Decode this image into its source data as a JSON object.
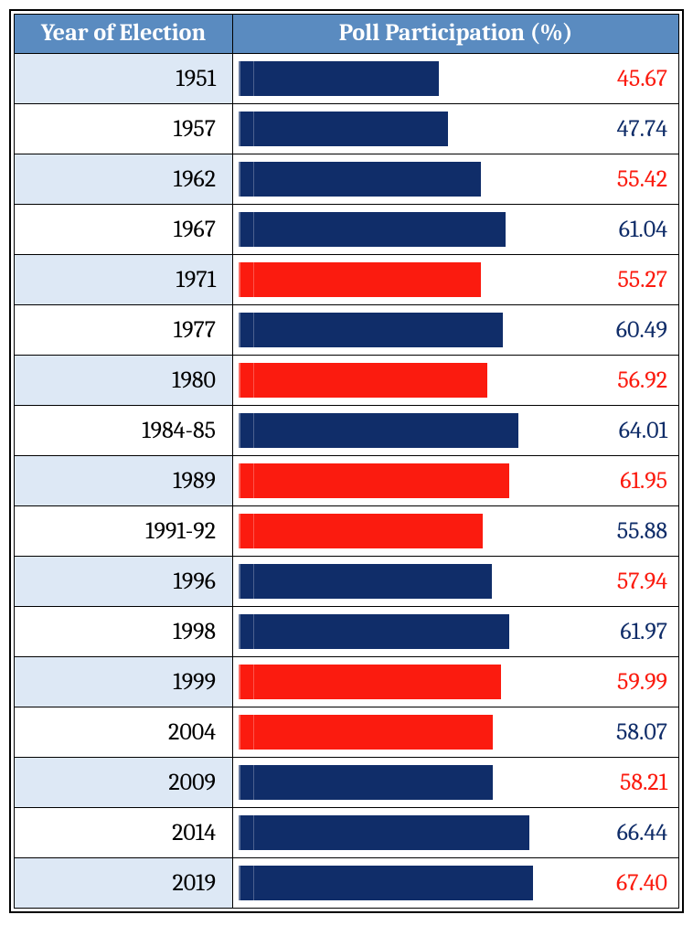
{
  "header": {
    "year": "Year of Election",
    "poll": "Poll Participation (%)"
  },
  "chart": {
    "type": "table-with-inline-bars",
    "bar_scale_max": 100,
    "colors": {
      "header_bg": "#5a8bc0",
      "header_text": "#ffffff",
      "stripe_bg": "#dde8f5",
      "bar_navy": "#102d69",
      "bar_red": "#fb1b0f",
      "val_navy": "#102d69",
      "val_red": "#fb1b0f",
      "border": "#000000"
    },
    "rows": [
      {
        "year": "1951",
        "value": 45.67,
        "bar_color": "#102d69",
        "value_color": "#fb1b0f"
      },
      {
        "year": "1957",
        "value": 47.74,
        "bar_color": "#102d69",
        "value_color": "#102d69"
      },
      {
        "year": "1962",
        "value": 55.42,
        "bar_color": "#102d69",
        "value_color": "#fb1b0f"
      },
      {
        "year": "1967",
        "value": 61.04,
        "bar_color": "#102d69",
        "value_color": "#102d69"
      },
      {
        "year": "1971",
        "value": 55.27,
        "bar_color": "#fb1b0f",
        "value_color": "#fb1b0f"
      },
      {
        "year": "1977",
        "value": 60.49,
        "bar_color": "#102d69",
        "value_color": "#102d69"
      },
      {
        "year": "1980",
        "value": 56.92,
        "bar_color": "#fb1b0f",
        "value_color": "#fb1b0f"
      },
      {
        "year": "1984-85",
        "value": 64.01,
        "bar_color": "#102d69",
        "value_color": "#102d69"
      },
      {
        "year": "1989",
        "value": 61.95,
        "bar_color": "#fb1b0f",
        "value_color": "#fb1b0f"
      },
      {
        "year": "1991-92",
        "value": 55.88,
        "bar_color": "#fb1b0f",
        "value_color": "#102d69"
      },
      {
        "year": "1996",
        "value": 57.94,
        "bar_color": "#102d69",
        "value_color": "#fb1b0f"
      },
      {
        "year": "1998",
        "value": 61.97,
        "bar_color": "#102d69",
        "value_color": "#102d69"
      },
      {
        "year": "1999",
        "value": 59.99,
        "bar_color": "#fb1b0f",
        "value_color": "#fb1b0f"
      },
      {
        "year": "2004",
        "value": 58.07,
        "bar_color": "#fb1b0f",
        "value_color": "#102d69"
      },
      {
        "year": "2009",
        "value": 58.21,
        "bar_color": "#102d69",
        "value_color": "#fb1b0f"
      },
      {
        "year": "2014",
        "value": 66.44,
        "bar_color": "#102d69",
        "value_color": "#102d69"
      },
      {
        "year": "2019",
        "value": 67.4,
        "bar_color": "#102d69",
        "value_color": "#fb1b0f"
      }
    ]
  }
}
